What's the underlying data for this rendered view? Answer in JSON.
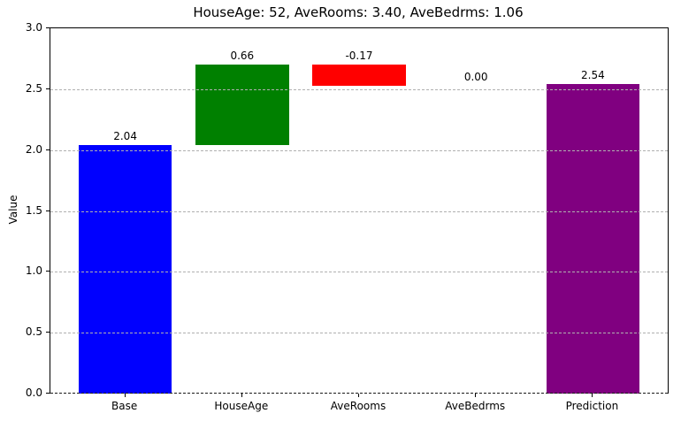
{
  "title": "HouseAge: 52, AveRooms: 3.40, AveBedrms: 1.06",
  "chart_data": {
    "type": "bar",
    "subtype": "waterfall",
    "title": "HouseAge: 52, AveRooms: 3.40, AveBedrms: 1.06",
    "xlabel": "",
    "ylabel": "Value",
    "ylim": [
      0,
      3
    ],
    "yticks": [
      "0.0",
      "0.5",
      "1.0",
      "1.5",
      "2.0",
      "2.5",
      "3.0"
    ],
    "categories": [
      "Base",
      "HouseAge",
      "AveRooms",
      "AveBedrms",
      "Prediction"
    ],
    "bars": [
      {
        "category": "Base",
        "value_label": "2.04",
        "start": 0,
        "end": 2.04,
        "color": "#0000ff"
      },
      {
        "category": "HouseAge",
        "value_label": "0.66",
        "start": 2.04,
        "end": 2.7,
        "color": "#008000"
      },
      {
        "category": "AveRooms",
        "value_label": "-0.17",
        "start": 2.7,
        "end": 2.53,
        "color": "#ff0000"
      },
      {
        "category": "AveBedrms",
        "value_label": "0.00",
        "start": 2.53,
        "end": 2.53,
        "color": "#ff0000"
      },
      {
        "category": "Prediction",
        "value_label": "2.54",
        "start": 0,
        "end": 2.54,
        "color": "#800080"
      }
    ],
    "grid": {
      "visible": true,
      "linestyle": "dashed",
      "color": "#b0b0b0",
      "above_bars": true
    },
    "baseline": {
      "value": 0,
      "linestyle": "dashed",
      "color": "#1a1a1a"
    },
    "bar_width_fraction": 0.8,
    "legend": null
  }
}
